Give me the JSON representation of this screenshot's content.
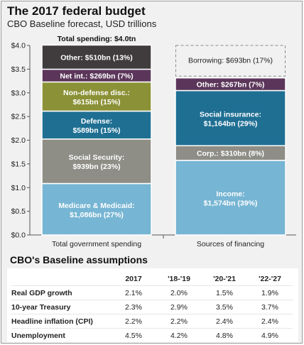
{
  "title": "The 2017 federal budget",
  "subtitle": "CBO Baseline forecast, USD trillions",
  "colors": {
    "medicare": "#76b5d3",
    "social_security": "#8e8e87",
    "defense": "#1f6f93",
    "non_defense": "#8b9136",
    "net_interest": "#5b365a",
    "other": "#403c3d",
    "income": "#76b5d3",
    "corp": "#8e8e87",
    "social_insurance": "#1f6f93",
    "other_financing": "#5b365a"
  },
  "chart_data": {
    "type": "bar",
    "stacked": true,
    "categories": [
      "Total government spending",
      "Sources of financing"
    ],
    "ylim": [
      0,
      4.0
    ],
    "yticks": [
      "$0.0",
      "$0.5",
      "$1.0",
      "$1.5",
      "$2.0",
      "$2.5",
      "$3.0",
      "$3.5",
      "$4.0"
    ],
    "ytick_values": [
      0,
      0.5,
      1.0,
      1.5,
      2.0,
      2.5,
      3.0,
      3.5,
      4.0
    ],
    "annotation": "Total spending: $4.0tn",
    "spending_segments": [
      {
        "label": "Medicare & Medicaid:",
        "value_label": "$1,086bn (27%)",
        "value": 1.086,
        "color_key": "medicare"
      },
      {
        "label": "Social Security:",
        "value_label": "$939bn (23%)",
        "value": 0.939,
        "color_key": "social_security"
      },
      {
        "label": "Defense:",
        "value_label": "$589bn (15%)",
        "value": 0.589,
        "color_key": "defense"
      },
      {
        "label": "Non-defense disc.:",
        "value_label": "$615bn (15%)",
        "value": 0.615,
        "color_key": "non_defense"
      },
      {
        "label": "Net int.: $269bn (7%)",
        "value_label": "",
        "value": 0.269,
        "color_key": "net_interest"
      },
      {
        "label": "Other: $510bn (13%)",
        "value_label": "",
        "value": 0.51,
        "color_key": "other"
      }
    ],
    "financing_segments": [
      {
        "label": "Income:",
        "value_label": "$1,574bn (39%)",
        "value": 1.574,
        "color_key": "income"
      },
      {
        "label": "Corp.: $310bn (8%)",
        "value_label": "",
        "value": 0.31,
        "color_key": "corp"
      },
      {
        "label": "Social insurance:",
        "value_label": "$1,164bn (29%)",
        "value": 1.164,
        "color_key": "social_insurance"
      },
      {
        "label": "Other: $267bn (7%)",
        "value_label": "",
        "value": 0.267,
        "color_key": "other_financing"
      }
    ],
    "borrowing": {
      "label": "Borrowing: $693bn (17%)",
      "value": 0.693
    }
  },
  "assumptions": {
    "title": "CBO's Baseline assumptions",
    "columns": [
      "2017",
      "'18-'19",
      "'20-'21",
      "'22-'27"
    ],
    "rows": [
      {
        "label": "Real GDP growth",
        "values": [
          "2.1%",
          "2.0%",
          "1.5%",
          "1.9%"
        ]
      },
      {
        "label": "10-year Treasury",
        "values": [
          "2.3%",
          "2.9%",
          "3.5%",
          "3.7%"
        ]
      },
      {
        "label": "Headline inflation (CPI)",
        "values": [
          "2.2%",
          "2.2%",
          "2.4%",
          "2.4%"
        ]
      },
      {
        "label": "Unemployment",
        "values": [
          "4.5%",
          "4.2%",
          "4.8%",
          "4.9%"
        ]
      }
    ]
  }
}
